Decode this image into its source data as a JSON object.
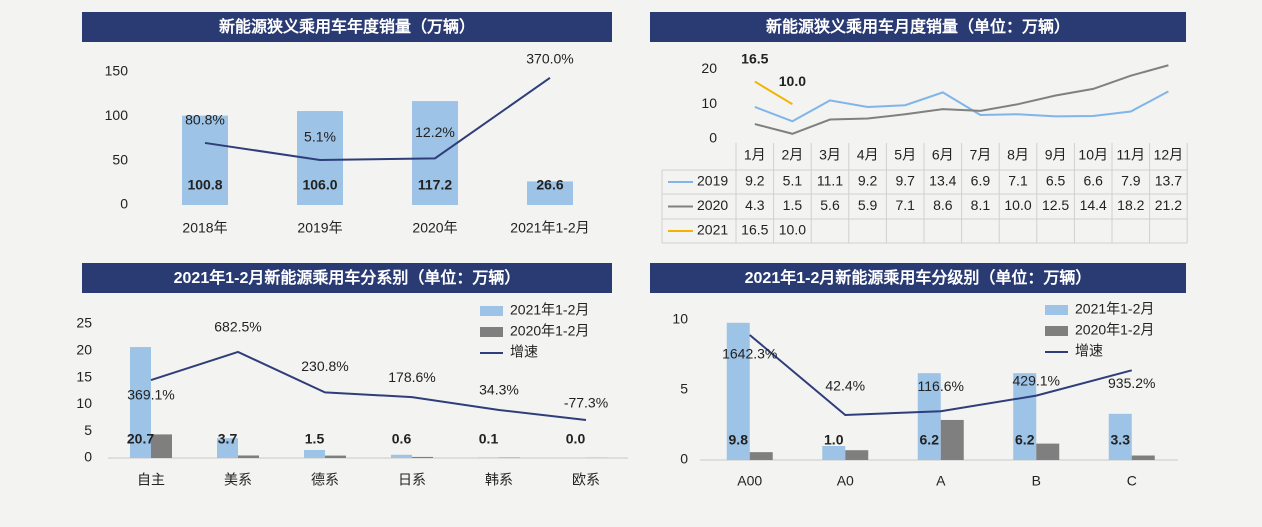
{
  "chart_data": [
    {
      "type": "bar",
      "title": "新能源狭义乘用车年度销量（万辆）",
      "categories": [
        "2018年",
        "2019年",
        "2020年",
        "2021年1-2月"
      ],
      "series": [
        {
          "color": "#9dc3e6",
          "values": [
            100.8,
            106.0,
            117.2,
            26.6
          ],
          "value_labels": [
            "100.8",
            "106.0",
            "117.2",
            "26.6"
          ]
        },
        {
          "type": "line",
          "axis": "y2",
          "color": "#2f3e7a",
          "values": [
            80.8,
            5.1,
            12.2,
            370.0
          ],
          "value_labels": [
            "80.8%",
            "5.1%",
            "12.2%",
            "370.0%"
          ]
        }
      ],
      "ylim": [
        0,
        150
      ],
      "yticks": [
        0,
        50,
        100,
        150
      ],
      "y2lim": [
        -195,
        396
      ]
    },
    {
      "type": "line",
      "title": "新能源狭义乘用车月度销量（单位：万辆）",
      "categories": [
        "1月",
        "2月",
        "3月",
        "4月",
        "5月",
        "6月",
        "7月",
        "8月",
        "9月",
        "10月",
        "11月",
        "12月"
      ],
      "series": [
        {
          "name": "2019",
          "color": "#7fb5e8",
          "values": [
            9.2,
            5.1,
            11.1,
            9.2,
            9.7,
            13.4,
            6.9,
            7.1,
            6.5,
            6.6,
            7.9,
            13.7
          ],
          "value_labels": [
            "9.2",
            "5.1",
            "11.1",
            "9.2",
            "9.7",
            "13.4",
            "6.9",
            "7.1",
            "6.5",
            "6.6",
            "7.9",
            "13.7"
          ]
        },
        {
          "name": "2020",
          "color": "#808080",
          "values": [
            4.3,
            1.5,
            5.6,
            5.9,
            7.1,
            8.6,
            8.1,
            10.0,
            12.5,
            14.4,
            18.2,
            21.2
          ],
          "value_labels": [
            "4.3",
            "1.5",
            "5.6",
            "5.9",
            "7.1",
            "8.6",
            "8.1",
            "10.0",
            "12.5",
            "14.4",
            "18.2",
            "21.2"
          ]
        },
        {
          "name": "2021",
          "color": "#f2b400",
          "values": [
            16.5,
            10.0,
            null,
            null,
            null,
            null,
            null,
            null,
            null,
            null,
            null,
            null
          ],
          "value_labels": [
            "16.5",
            "10.0",
            null,
            null,
            null,
            null,
            null,
            null,
            null,
            null,
            null,
            null
          ]
        }
      ],
      "ylim": [
        0,
        25
      ],
      "yticks": [
        0,
        10,
        20
      ],
      "table": true
    },
    {
      "type": "bar",
      "title": "2021年1-2月新能源乘用车分系别（单位：万辆）",
      "categories": [
        "自主",
        "美系",
        "德系",
        "日系",
        "韩系",
        "欧系"
      ],
      "series": [
        {
          "name": "2021年1-2月",
          "color": "#9dc3e6",
          "values": [
            20.7,
            3.7,
            1.5,
            0.6,
            0.1,
            0.0
          ],
          "value_labels": [
            "20.7",
            "3.7",
            "1.5",
            "0.6",
            "0.1",
            "0.0"
          ]
        },
        {
          "name": "2020年1-2月",
          "color": "#7f7f7f",
          "values": [
            4.4,
            0.47,
            0.45,
            0.2,
            0.07,
            0.02
          ]
        },
        {
          "name": "增速",
          "type": "line",
          "axis": "y2",
          "color": "#2f3e7a",
          "values": [
            369.1,
            682.5,
            230.8,
            178.6,
            34.3,
            -77.3
          ],
          "value_labels": [
            "369.1%",
            "682.5%",
            "230.8%",
            "178.6%",
            "34.3%",
            "-77.3%"
          ]
        }
      ],
      "ylim": [
        0,
        25
      ],
      "yticks": [
        0,
        5,
        10,
        15,
        20,
        25
      ],
      "y2lim": [
        -502,
        995
      ],
      "legend": "top-right"
    },
    {
      "type": "bar",
      "title": "2021年1-2月新能源乘用车分级别（单位：万辆）",
      "categories": [
        "A00",
        "A0",
        "A",
        "B",
        "C"
      ],
      "series": [
        {
          "name": "2021年1-2月",
          "color": "#9dc3e6",
          "values": [
            9.8,
            1.0,
            6.2,
            6.2,
            3.3
          ],
          "value_labels": [
            "9.8",
            "1.0",
            "6.2",
            "6.2",
            "3.3"
          ]
        },
        {
          "name": "2020年1-2月",
          "color": "#7f7f7f",
          "values": [
            0.56,
            0.7,
            2.86,
            1.17,
            0.32
          ]
        },
        {
          "name": "增速",
          "type": "line",
          "axis": "y2",
          "color": "#2f3e7a",
          "values": [
            1642.3,
            42.4,
            116.6,
            429.1,
            935.2
          ],
          "value_labels": [
            "1642.3%",
            "42.4%",
            "116.6%",
            "429.1%",
            "935.2%"
          ]
        }
      ],
      "ylim": [
        0,
        10
      ],
      "yticks": [
        0,
        5,
        10
      ],
      "y2lim": [
        -858,
        1942
      ],
      "legend": "top-right"
    }
  ]
}
